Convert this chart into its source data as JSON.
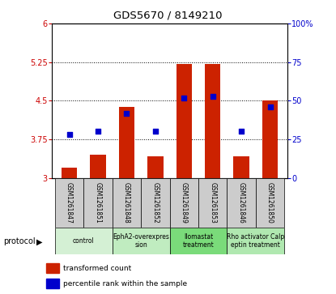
{
  "title": "GDS5670 / 8149210",
  "samples": [
    "GSM1261847",
    "GSM1261851",
    "GSM1261848",
    "GSM1261852",
    "GSM1261849",
    "GSM1261853",
    "GSM1261846",
    "GSM1261850"
  ],
  "transformed_counts": [
    3.2,
    3.45,
    4.38,
    3.42,
    5.22,
    5.22,
    3.42,
    4.5
  ],
  "percentile_ranks": [
    28,
    30,
    42,
    30,
    52,
    53,
    30,
    46
  ],
  "ylim": [
    3.0,
    6.0
  ],
  "y_ticks": [
    3.0,
    3.75,
    4.5,
    5.25,
    6.0
  ],
  "y_tick_labels": [
    "3",
    "3.75",
    "4.5",
    "5.25",
    "6"
  ],
  "y2_ticks": [
    0,
    25,
    50,
    75,
    100
  ],
  "y2_tick_labels": [
    "0",
    "25",
    "50",
    "75",
    "100%"
  ],
  "protocols": [
    {
      "label": "control",
      "start": 0,
      "end": 2,
      "color": "#d4f0d4"
    },
    {
      "label": "EphA2-overexpres\nsion",
      "start": 2,
      "end": 4,
      "color": "#c0ecc0"
    },
    {
      "label": "Ilomastat\ntreatment",
      "start": 4,
      "end": 6,
      "color": "#7adb7a"
    },
    {
      "label": "Rho activator Calp\neptin treatment",
      "start": 6,
      "end": 8,
      "color": "#b0e8b0"
    }
  ],
  "sample_bg": "#cccccc",
  "bar_color": "#cc2200",
  "dot_color": "#0000cc",
  "bar_width": 0.55,
  "legend_label_count": "transformed count",
  "legend_label_pct": "percentile rank within the sample",
  "protocol_label": "protocol"
}
